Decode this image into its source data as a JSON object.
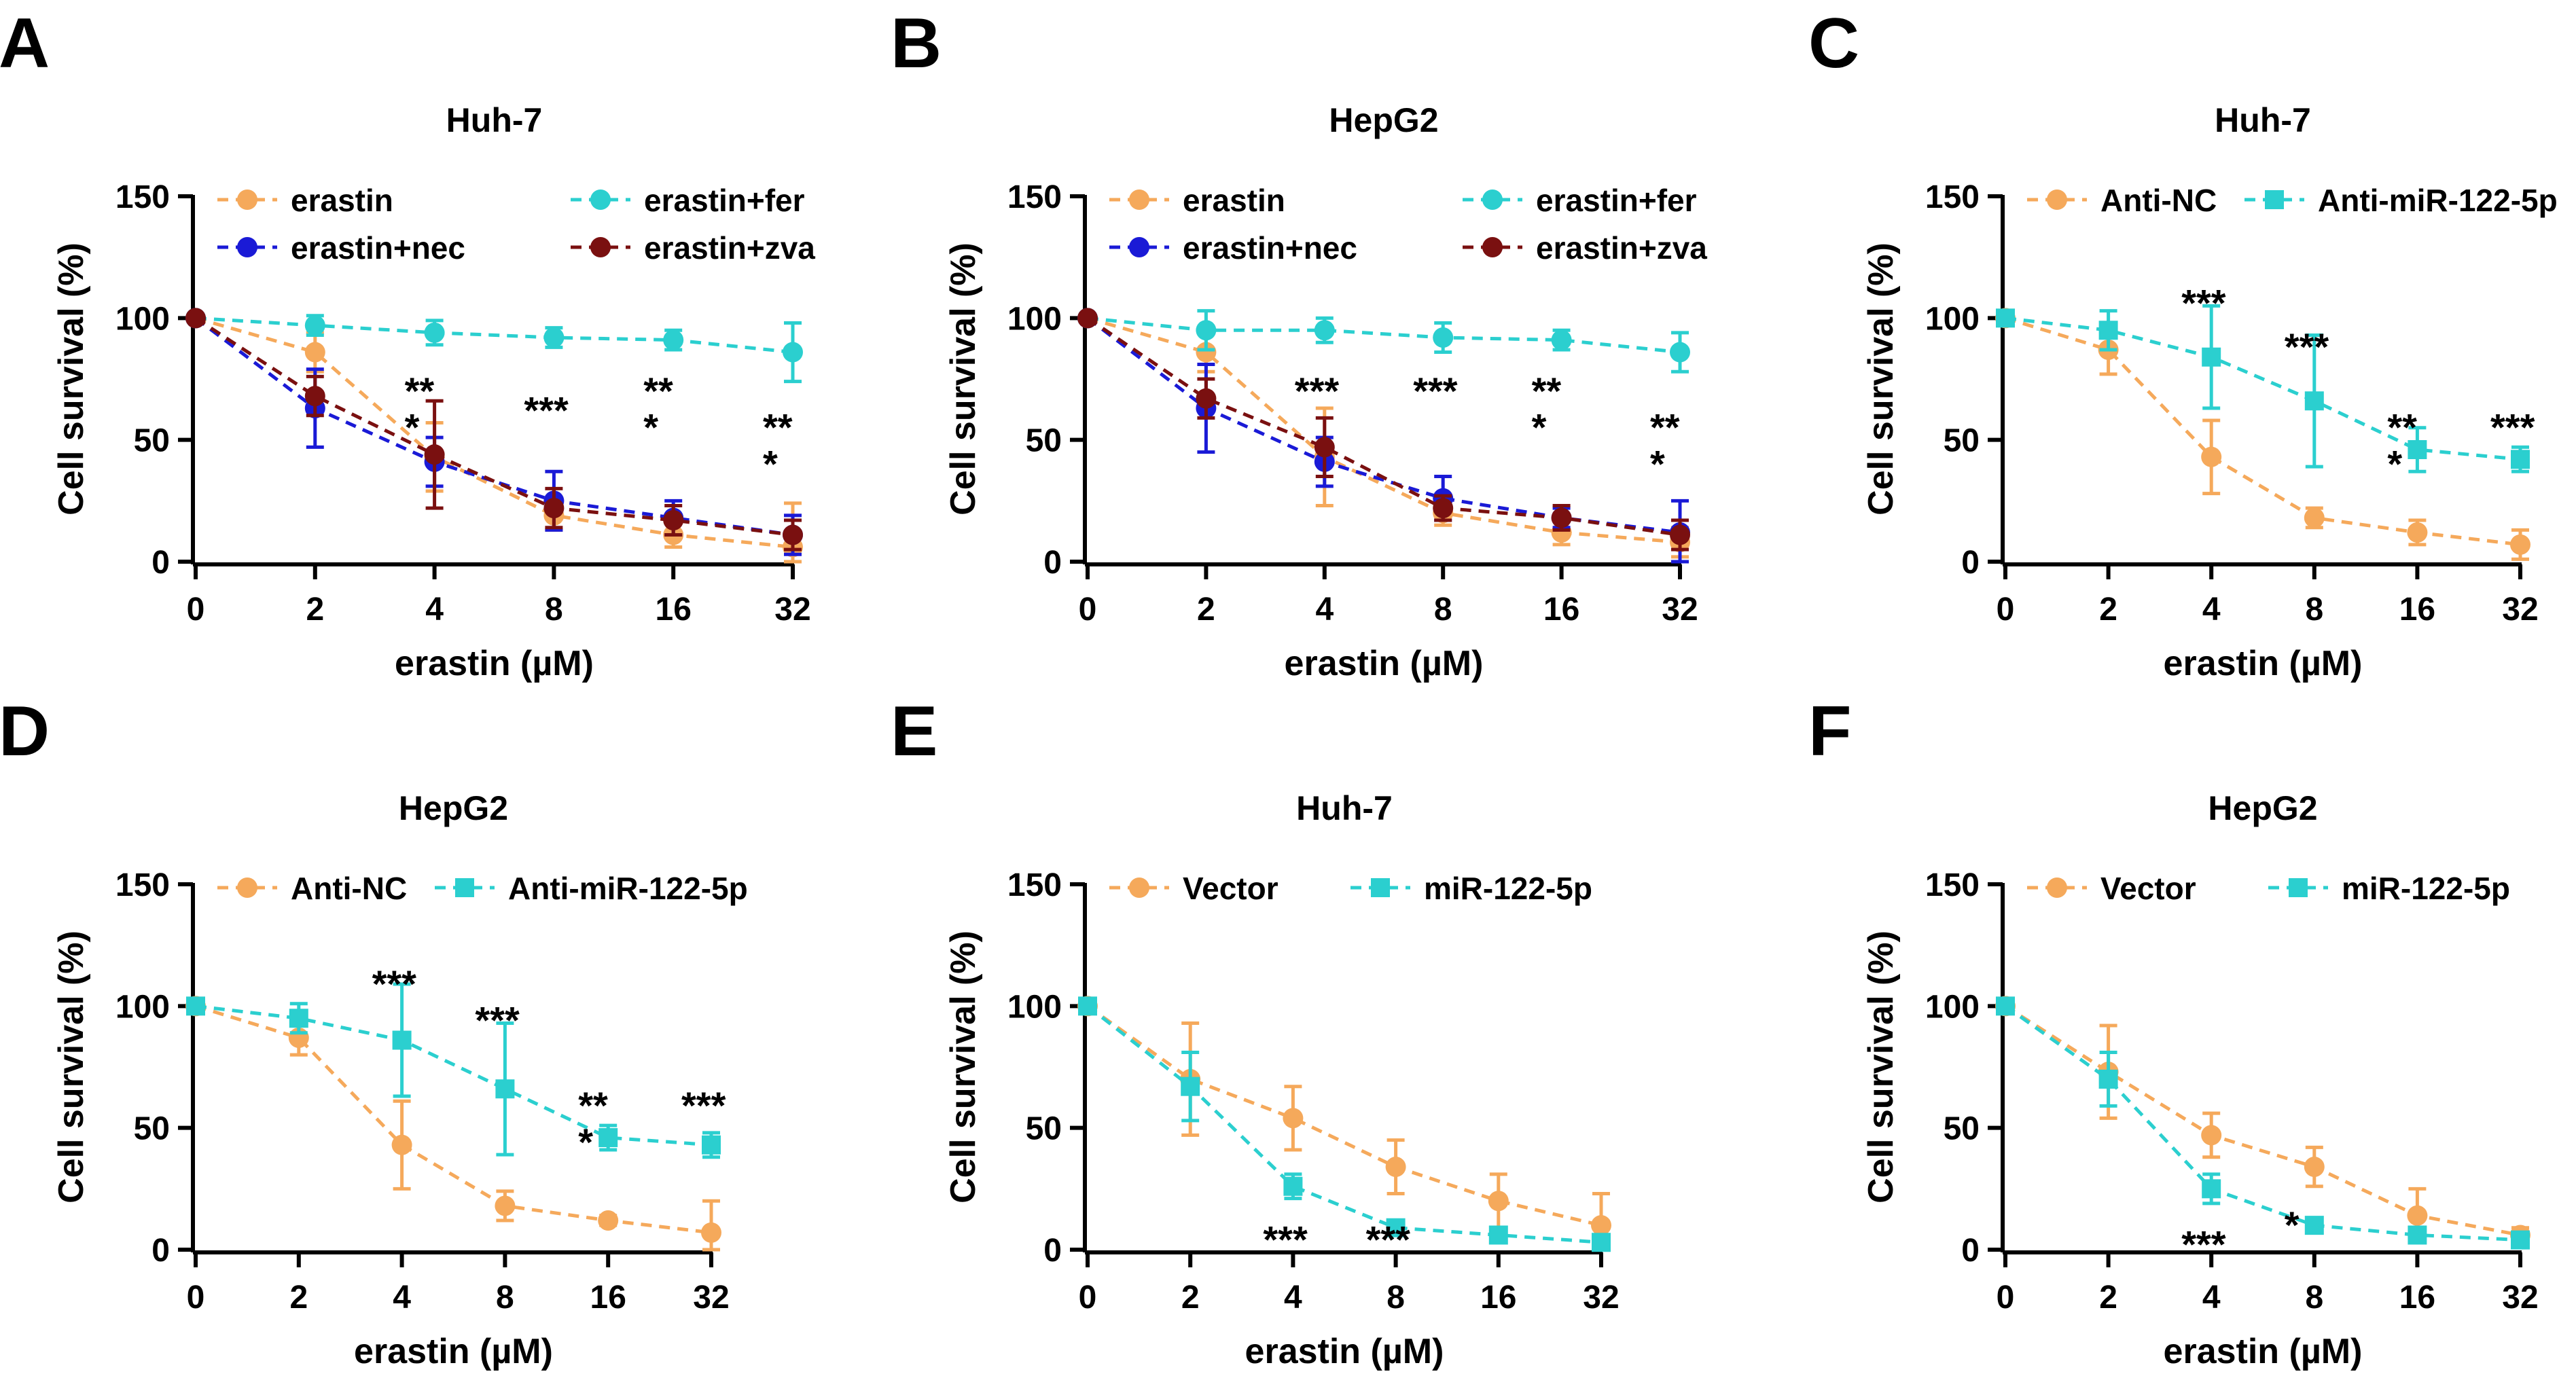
{
  "figure": {
    "colors": {
      "erastin": "#F5A95B",
      "fer": "#2BCFCF",
      "nec": "#1A1AD6",
      "zva": "#7A1010",
      "axis": "#000000"
    }
  },
  "chart_data": [
    {
      "panel_label": "A",
      "type": "line",
      "title": "Huh-7",
      "xlabel": "erastin (µM)",
      "ylabel": "Cell survival (%)",
      "categories": [
        "0",
        "2",
        "4",
        "8",
        "16",
        "32"
      ],
      "ylim": [
        0,
        150
      ],
      "yticks": [
        0,
        50,
        100,
        150
      ],
      "legend_columns": 2,
      "series": [
        {
          "name": "erastin",
          "color": "#F5A95B",
          "marker": "circle",
          "values": [
            100,
            86,
            43,
            19,
            11,
            6
          ],
          "errors": [
            0,
            8,
            14,
            6,
            5,
            18
          ]
        },
        {
          "name": "erastin+fer",
          "color": "#2BCFCF",
          "marker": "circle",
          "values": [
            100,
            97,
            94,
            92,
            91,
            86
          ],
          "errors": [
            0,
            4,
            5,
            4,
            4,
            12
          ]
        },
        {
          "name": "erastin+nec",
          "color": "#1A1AD6",
          "marker": "circle",
          "values": [
            100,
            63,
            41,
            25,
            18,
            11
          ],
          "errors": [
            0,
            16,
            10,
            12,
            7,
            8
          ]
        },
        {
          "name": "erastin+zva",
          "color": "#7A1010",
          "marker": "circle",
          "values": [
            100,
            68,
            44,
            22,
            17,
            11
          ],
          "errors": [
            0,
            8,
            22,
            8,
            6,
            6
          ]
        }
      ],
      "annotations": [
        {
          "category": "4",
          "y": 72,
          "text": "**"
        },
        {
          "category": "4",
          "y": 57,
          "text": "*"
        },
        {
          "category": "8",
          "y": 64,
          "text": "***"
        },
        {
          "category": "16",
          "y": 72,
          "text": "**"
        },
        {
          "category": "16",
          "y": 57,
          "text": "*"
        },
        {
          "category": "32",
          "y": 57,
          "text": "**"
        },
        {
          "category": "32",
          "y": 42,
          "text": "*"
        }
      ]
    },
    {
      "panel_label": "B",
      "type": "line",
      "title": "HepG2",
      "xlabel": "erastin (µM)",
      "ylabel": "Cell survival (%)",
      "categories": [
        "0",
        "2",
        "4",
        "8",
        "16",
        "32"
      ],
      "ylim": [
        0,
        150
      ],
      "yticks": [
        0,
        50,
        100,
        150
      ],
      "legend_columns": 2,
      "series": [
        {
          "name": "erastin",
          "color": "#F5A95B",
          "marker": "circle",
          "values": [
            100,
            86,
            43,
            20,
            12,
            8
          ],
          "errors": [
            0,
            8,
            20,
            5,
            5,
            6
          ]
        },
        {
          "name": "erastin+fer",
          "color": "#2BCFCF",
          "marker": "circle",
          "values": [
            100,
            95,
            95,
            92,
            91,
            86
          ],
          "errors": [
            0,
            8,
            5,
            6,
            4,
            8
          ]
        },
        {
          "name": "erastin+nec",
          "color": "#1A1AD6",
          "marker": "circle",
          "values": [
            100,
            63,
            41,
            26,
            18,
            12
          ],
          "errors": [
            0,
            18,
            10,
            9,
            4,
            13
          ]
        },
        {
          "name": "erastin+zva",
          "color": "#7A1010",
          "marker": "circle",
          "values": [
            100,
            67,
            47,
            22,
            18,
            11
          ],
          "errors": [
            0,
            8,
            12,
            5,
            5,
            6
          ]
        }
      ],
      "annotations": [
        {
          "category": "4",
          "y": 72,
          "text": "***"
        },
        {
          "category": "8",
          "y": 72,
          "text": "***"
        },
        {
          "category": "16",
          "y": 72,
          "text": "**"
        },
        {
          "category": "16",
          "y": 57,
          "text": "*"
        },
        {
          "category": "32",
          "y": 57,
          "text": "**"
        },
        {
          "category": "32",
          "y": 42,
          "text": "*"
        }
      ]
    },
    {
      "panel_label": "C",
      "type": "line",
      "title": "Huh-7",
      "xlabel": "erastin (µM)",
      "ylabel": "Cell survival (%)",
      "categories": [
        "0",
        "2",
        "4",
        "8",
        "16",
        "32"
      ],
      "ylim": [
        0,
        150
      ],
      "yticks": [
        0,
        50,
        100,
        150
      ],
      "legend_columns": 2,
      "series": [
        {
          "name": "Anti-NC",
          "color": "#F5A95B",
          "marker": "circle",
          "values": [
            100,
            87,
            43,
            18,
            12,
            7
          ],
          "errors": [
            0,
            10,
            15,
            4,
            5,
            6
          ]
        },
        {
          "name": "Anti-miR-122-5p",
          "color": "#2BCFCF",
          "marker": "square",
          "values": [
            100,
            95,
            84,
            66,
            46,
            42
          ],
          "errors": [
            0,
            8,
            21,
            27,
            9,
            5
          ]
        }
      ],
      "annotations": [
        {
          "category": "4",
          "y": 108,
          "text": "***"
        },
        {
          "category": "8",
          "y": 90,
          "text": "***"
        },
        {
          "category": "16",
          "y": 57,
          "text": "**"
        },
        {
          "category": "16",
          "y": 42,
          "text": "*"
        },
        {
          "category": "32",
          "y": 57,
          "text": "***"
        }
      ]
    },
    {
      "panel_label": "D",
      "type": "line",
      "title": "HepG2",
      "xlabel": "erastin (µM)",
      "ylabel": "Cell survival (%)",
      "categories": [
        "0",
        "2",
        "4",
        "8",
        "16",
        "32"
      ],
      "ylim": [
        0,
        150
      ],
      "yticks": [
        0,
        50,
        100,
        150
      ],
      "legend_columns": 2,
      "series": [
        {
          "name": "Anti-NC",
          "color": "#F5A95B",
          "marker": "circle",
          "values": [
            100,
            87,
            43,
            18,
            12,
            7
          ],
          "errors": [
            0,
            7,
            18,
            6,
            2,
            13
          ]
        },
        {
          "name": "Anti-miR-122-5p",
          "color": "#2BCFCF",
          "marker": "square",
          "values": [
            100,
            95,
            86,
            66,
            46,
            43
          ],
          "errors": [
            0,
            6,
            23,
            27,
            5,
            5
          ]
        }
      ],
      "annotations": [
        {
          "category": "4",
          "y": 111,
          "text": "***"
        },
        {
          "category": "8",
          "y": 96,
          "text": "***"
        },
        {
          "category": "16",
          "y": 61,
          "text": "**"
        },
        {
          "category": "16",
          "y": 46,
          "text": "*"
        },
        {
          "category": "32",
          "y": 61,
          "text": "***"
        }
      ]
    },
    {
      "panel_label": "E",
      "type": "line",
      "title": "Huh-7",
      "xlabel": "erastin (µM)",
      "ylabel": "Cell survival (%)",
      "categories": [
        "0",
        "2",
        "4",
        "8",
        "16",
        "32"
      ],
      "ylim": [
        0,
        150
      ],
      "yticks": [
        0,
        50,
        100,
        150
      ],
      "legend_columns": 2,
      "series": [
        {
          "name": "Vector",
          "color": "#F5A95B",
          "marker": "circle",
          "values": [
            100,
            70,
            54,
            34,
            20,
            10
          ],
          "errors": [
            0,
            23,
            13,
            11,
            11,
            13
          ]
        },
        {
          "name": "miR-122-5p",
          "color": "#2BCFCF",
          "marker": "square",
          "values": [
            100,
            67,
            26,
            9,
            6,
            3
          ],
          "errors": [
            0,
            14,
            5,
            3,
            2,
            1
          ]
        }
      ],
      "annotations": [
        {
          "category": "4",
          "y": 6,
          "text": "***"
        },
        {
          "category": "8",
          "y": 6,
          "text": "***"
        }
      ]
    },
    {
      "panel_label": "F",
      "type": "line",
      "title": "HepG2",
      "xlabel": "erastin (µM)",
      "ylabel": "Cell survival (%)",
      "categories": [
        "0",
        "2",
        "4",
        "8",
        "16",
        "32"
      ],
      "ylim": [
        0,
        150
      ],
      "yticks": [
        0,
        50,
        100,
        150
      ],
      "legend_columns": 2,
      "series": [
        {
          "name": "Vector",
          "color": "#F5A95B",
          "marker": "circle",
          "values": [
            100,
            73,
            47,
            34,
            14,
            6
          ],
          "errors": [
            0,
            19,
            9,
            8,
            11,
            3
          ]
        },
        {
          "name": "miR-122-5p",
          "color": "#2BCFCF",
          "marker": "square",
          "values": [
            100,
            70,
            25,
            10,
            6,
            4
          ],
          "errors": [
            0,
            11,
            6,
            3,
            2,
            1
          ]
        }
      ],
      "annotations": [
        {
          "category": "4",
          "y": 4,
          "text": "***"
        },
        {
          "category": "8",
          "y": 12,
          "text": "*"
        }
      ]
    }
  ]
}
